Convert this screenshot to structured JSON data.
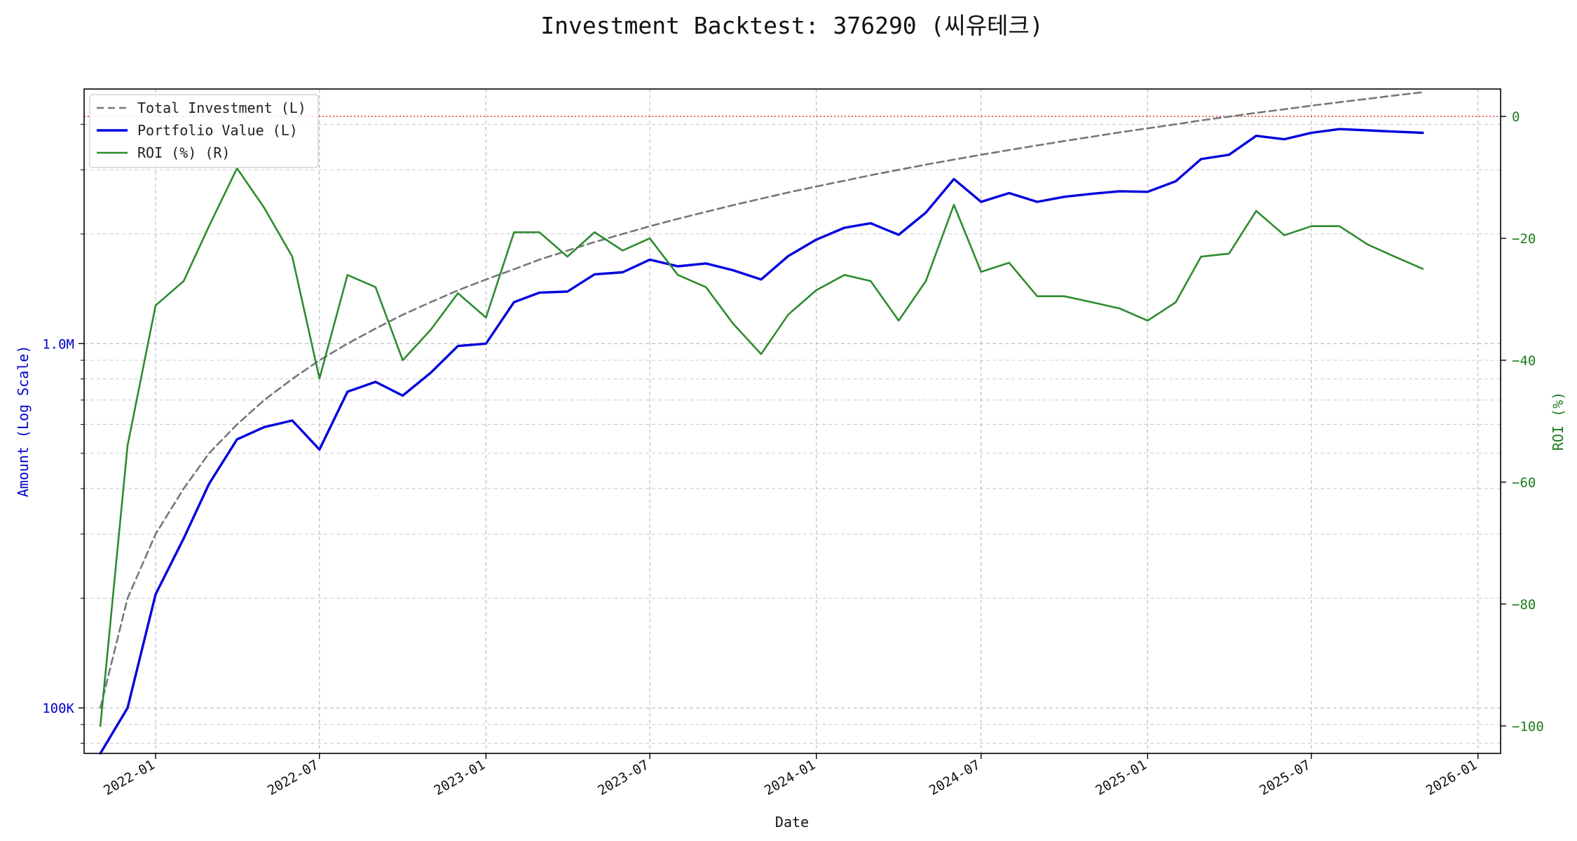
{
  "chart_data": {
    "type": "line",
    "title": "Investment Backtest: 376290 (씨유테크)",
    "xlabel": "Date",
    "ylabel_left": "Amount (Log Scale)",
    "ylabel_right": "ROI (%)",
    "left_axis": {
      "scale": "log",
      "range": [
        75000,
        5000000
      ],
      "major_ticks": [
        {
          "value": 100000,
          "label": "100K"
        },
        {
          "value": 1000000,
          "label": "1.0M"
        }
      ],
      "color": "#0000cc"
    },
    "right_axis": {
      "scale": "linear",
      "range": [
        -104.5,
        4.5
      ],
      "ticks": [
        0,
        -20,
        -40,
        -60,
        -80,
        -100
      ],
      "color": "#1e7a1e"
    },
    "x_range": [
      "2021-10-14",
      "2026-01-26"
    ],
    "x_ticks": [
      "2022-01",
      "2022-07",
      "2023-01",
      "2023-07",
      "2024-01",
      "2024-07",
      "2025-01",
      "2025-07",
      "2026-01"
    ],
    "grid": true,
    "legend": {
      "position": "top-left",
      "entries": [
        {
          "label": "Total Investment (L)",
          "series": "total_investment"
        },
        {
          "label": "Portfolio Value (L)",
          "series": "portfolio_value"
        },
        {
          "label": "ROI (%) (R)",
          "series": "roi"
        }
      ]
    },
    "zero_reference_line": {
      "axis": "right",
      "value": 0,
      "color": "#e03030"
    },
    "x": [
      "2021-11-01",
      "2021-12-01",
      "2022-01-01",
      "2022-02-01",
      "2022-03-01",
      "2022-04-01",
      "2022-05-01",
      "2022-06-01",
      "2022-07-01",
      "2022-08-01",
      "2022-09-01",
      "2022-10-01",
      "2022-11-01",
      "2022-12-01",
      "2023-01-01",
      "2023-02-01",
      "2023-03-01",
      "2023-04-01",
      "2023-05-01",
      "2023-06-01",
      "2023-07-01",
      "2023-08-01",
      "2023-09-01",
      "2023-10-01",
      "2023-11-01",
      "2023-12-01",
      "2024-01-01",
      "2024-02-01",
      "2024-03-01",
      "2024-04-01",
      "2024-05-01",
      "2024-06-01",
      "2024-07-01",
      "2024-08-01",
      "2024-09-01",
      "2024-10-01",
      "2024-11-01",
      "2024-12-01",
      "2025-01-01",
      "2025-02-01",
      "2025-03-01",
      "2025-04-01",
      "2025-05-01",
      "2025-06-01",
      "2025-07-01",
      "2025-08-01",
      "2025-09-01",
      "2025-10-01",
      "2025-11-01"
    ],
    "series": [
      {
        "key": "total_investment",
        "name": "Total Investment (L)",
        "axis": "left",
        "color": "#777777",
        "dash": true,
        "values": [
          100000,
          200000,
          300000,
          400000,
          500000,
          600000,
          700000,
          800000,
          900000,
          1000000,
          1100000,
          1200000,
          1300000,
          1400000,
          1500000,
          1600000,
          1700000,
          1800000,
          1900000,
          2000000,
          2100000,
          2200000,
          2300000,
          2400000,
          2500000,
          2600000,
          2700000,
          2800000,
          2900000,
          3000000,
          3100000,
          3200000,
          3300000,
          3400000,
          3500000,
          3600000,
          3700000,
          3800000,
          3900000,
          4000000,
          4100000,
          4200000,
          4300000,
          4400000,
          4500000,
          4600000,
          4700000,
          4800000,
          4900000
        ]
      },
      {
        "key": "portfolio_value",
        "name": "Portfolio Value (L)",
        "axis": "left",
        "color": "#0000dd",
        "dash": false,
        "values": [
          0,
          100000,
          205000,
          292000,
          412000,
          546000,
          590000,
          615000,
          512000,
          738000,
          785000,
          720000,
          832000,
          985000,
          1000000,
          1300000,
          1380000,
          1390000,
          1550000,
          1570000,
          1700000,
          1630000,
          1660000,
          1590000,
          1500000,
          1740000,
          1930000,
          2080000,
          2140000,
          1990000,
          2290000,
          2830000,
          2450000,
          2590000,
          2450000,
          2530000,
          2580000,
          2620000,
          2610000,
          2790000,
          3210000,
          3300000,
          3720000,
          3640000,
          3790000,
          3880000,
          3850000,
          3820000,
          3790000
        ]
      },
      {
        "key": "roi",
        "name": "ROI (%) (R)",
        "axis": "right",
        "color": "#2e8b2e",
        "dash": false,
        "values": [
          -100,
          -54,
          -31,
          -27,
          -18,
          -8.5,
          -15,
          -23,
          -43,
          -26,
          -28,
          -40,
          -35,
          -29,
          -33,
          -19,
          -19,
          -23,
          -19,
          -22,
          -20,
          -26,
          -28,
          -34,
          -39,
          -32.5,
          -28.5,
          -26,
          -27,
          -33.5,
          -27,
          -14.5,
          -25.5,
          -24,
          -29.5,
          -29.5,
          -30.5,
          -31.5,
          -33.5,
          -30.5,
          -23,
          -22.5,
          -15.5,
          -19.5,
          -18,
          -18,
          -21,
          -23,
          -25
        ]
      }
    ]
  }
}
